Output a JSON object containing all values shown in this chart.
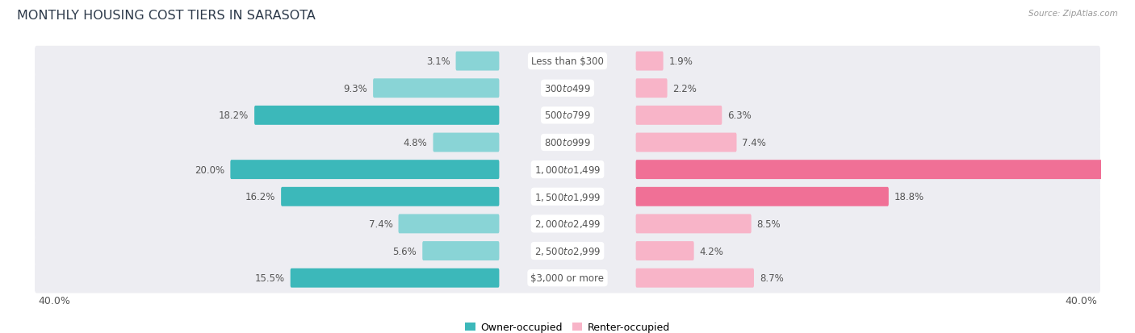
{
  "title": "MONTHLY HOUSING COST TIERS IN SARASOTA",
  "source": "Source: ZipAtlas.com",
  "categories": [
    "Less than $300",
    "$300 to $499",
    "$500 to $799",
    "$800 to $999",
    "$1,000 to $1,499",
    "$1,500 to $1,999",
    "$2,000 to $2,499",
    "$2,500 to $2,999",
    "$3,000 or more"
  ],
  "owner_values": [
    3.1,
    9.3,
    18.2,
    4.8,
    20.0,
    16.2,
    7.4,
    5.6,
    15.5
  ],
  "renter_values": [
    1.9,
    2.2,
    6.3,
    7.4,
    37.0,
    18.8,
    8.5,
    4.2,
    8.7
  ],
  "owner_color_dark": "#3cb8ba",
  "owner_color_light": "#89d4d6",
  "renter_color_dark": "#f07096",
  "renter_color_light": "#f8b4c8",
  "axis_max": 40.0,
  "row_bg_color": "#ededf2",
  "row_bg_alt": "#e4e4ea",
  "legend_owner": "Owner-occupied",
  "legend_renter": "Renter-occupied",
  "title_fontsize": 11.5,
  "label_fontsize": 8.5,
  "tick_fontsize": 9,
  "cat_label_fontsize": 8.5
}
